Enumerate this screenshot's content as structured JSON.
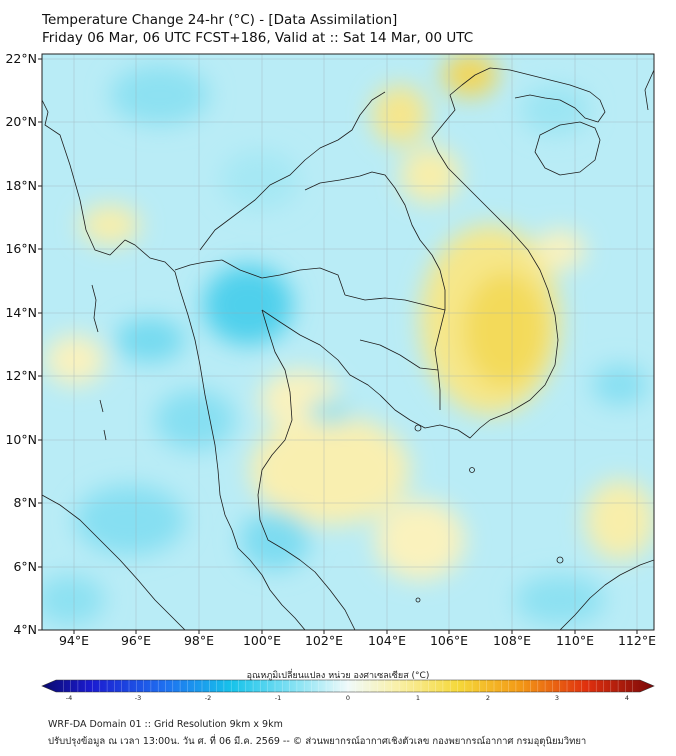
{
  "header": {
    "title": "Temperature Change 24-hr (°C) - [Data Assimilation]",
    "subtitle": "Friday 06 Mar, 06 UTC FCST+186, Valid at :: Sat 14 Mar, 00 UTC"
  },
  "map": {
    "lon_labels": [
      "94°E",
      "96°E",
      "98°E",
      "100°E",
      "102°E",
      "104°E",
      "106°E",
      "108°E",
      "110°E",
      "112°E"
    ],
    "lat_labels": [
      "22°N",
      "20°N",
      "18°N",
      "16°N",
      "14°N",
      "12°N",
      "10°N",
      "8°N",
      "6°N",
      "4°N"
    ],
    "lon_range": [
      93,
      112.5
    ],
    "lat_range": [
      4,
      22.2
    ],
    "gridlines": true,
    "colors": {
      "background_field": "#b7ecf5",
      "cool_anomaly": "#3fcbea",
      "warm_anomaly": "#f7e98c",
      "strong_warm": "#f2d54e",
      "coastline": "#222222"
    }
  },
  "colorbar": {
    "title": "อุณหภูมิเปลี่ยนแปลง หน่วย องศาเซลเซียส (°C)",
    "ticks": [
      "-4",
      "-3",
      "-2",
      "-1",
      "0",
      "1",
      "2",
      "3",
      "4"
    ],
    "range": [
      -4,
      4
    ]
  },
  "footer": {
    "line1": "WRF-DA Domain 01 :: Grid Resolution 9km x 9km",
    "line2": "ปรับปรุงข้อมูล ณ เวลา 13:00น. วัน ศ. ที่ 06 มี.ค. 2569 -- © ส่วนพยากรณ์อากาศเชิงตัวเลข กองพยากรณ์อากาศ กรมอุตุนิยมวิทยา"
  }
}
